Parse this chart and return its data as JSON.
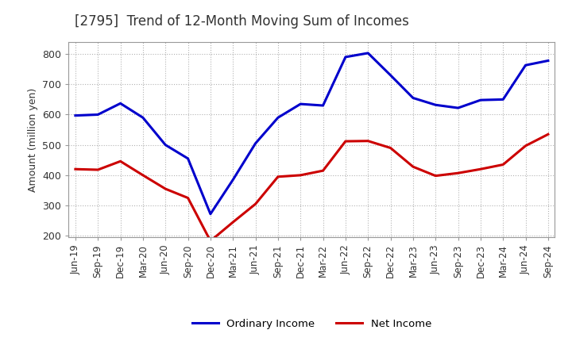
{
  "title": "[2795]  Trend of 12-Month Moving Sum of Incomes",
  "ylabel": "Amount (million yen)",
  "ylim": [
    195,
    840
  ],
  "yticks": [
    200,
    300,
    400,
    500,
    600,
    700,
    800
  ],
  "background_color": "#ffffff",
  "plot_bg_color": "#ffffff",
  "grid_color": "#aaaaaa",
  "ordinary_income_color": "#0000cc",
  "net_income_color": "#cc0000",
  "x_labels": [
    "Jun-19",
    "Sep-19",
    "Dec-19",
    "Mar-20",
    "Jun-20",
    "Sep-20",
    "Dec-20",
    "Mar-21",
    "Jun-21",
    "Sep-21",
    "Dec-21",
    "Mar-22",
    "Jun-22",
    "Sep-22",
    "Dec-22",
    "Mar-23",
    "Jun-23",
    "Sep-23",
    "Dec-23",
    "Mar-24",
    "Jun-24",
    "Sep-24"
  ],
  "ordinary_income": [
    597,
    600,
    637,
    590,
    500,
    455,
    272,
    385,
    505,
    590,
    635,
    630,
    790,
    803,
    730,
    655,
    632,
    622,
    648,
    650,
    763,
    778
  ],
  "net_income": [
    420,
    418,
    446,
    400,
    355,
    325,
    183,
    245,
    305,
    395,
    400,
    415,
    512,
    513,
    490,
    428,
    398,
    407,
    420,
    435,
    497,
    535
  ]
}
